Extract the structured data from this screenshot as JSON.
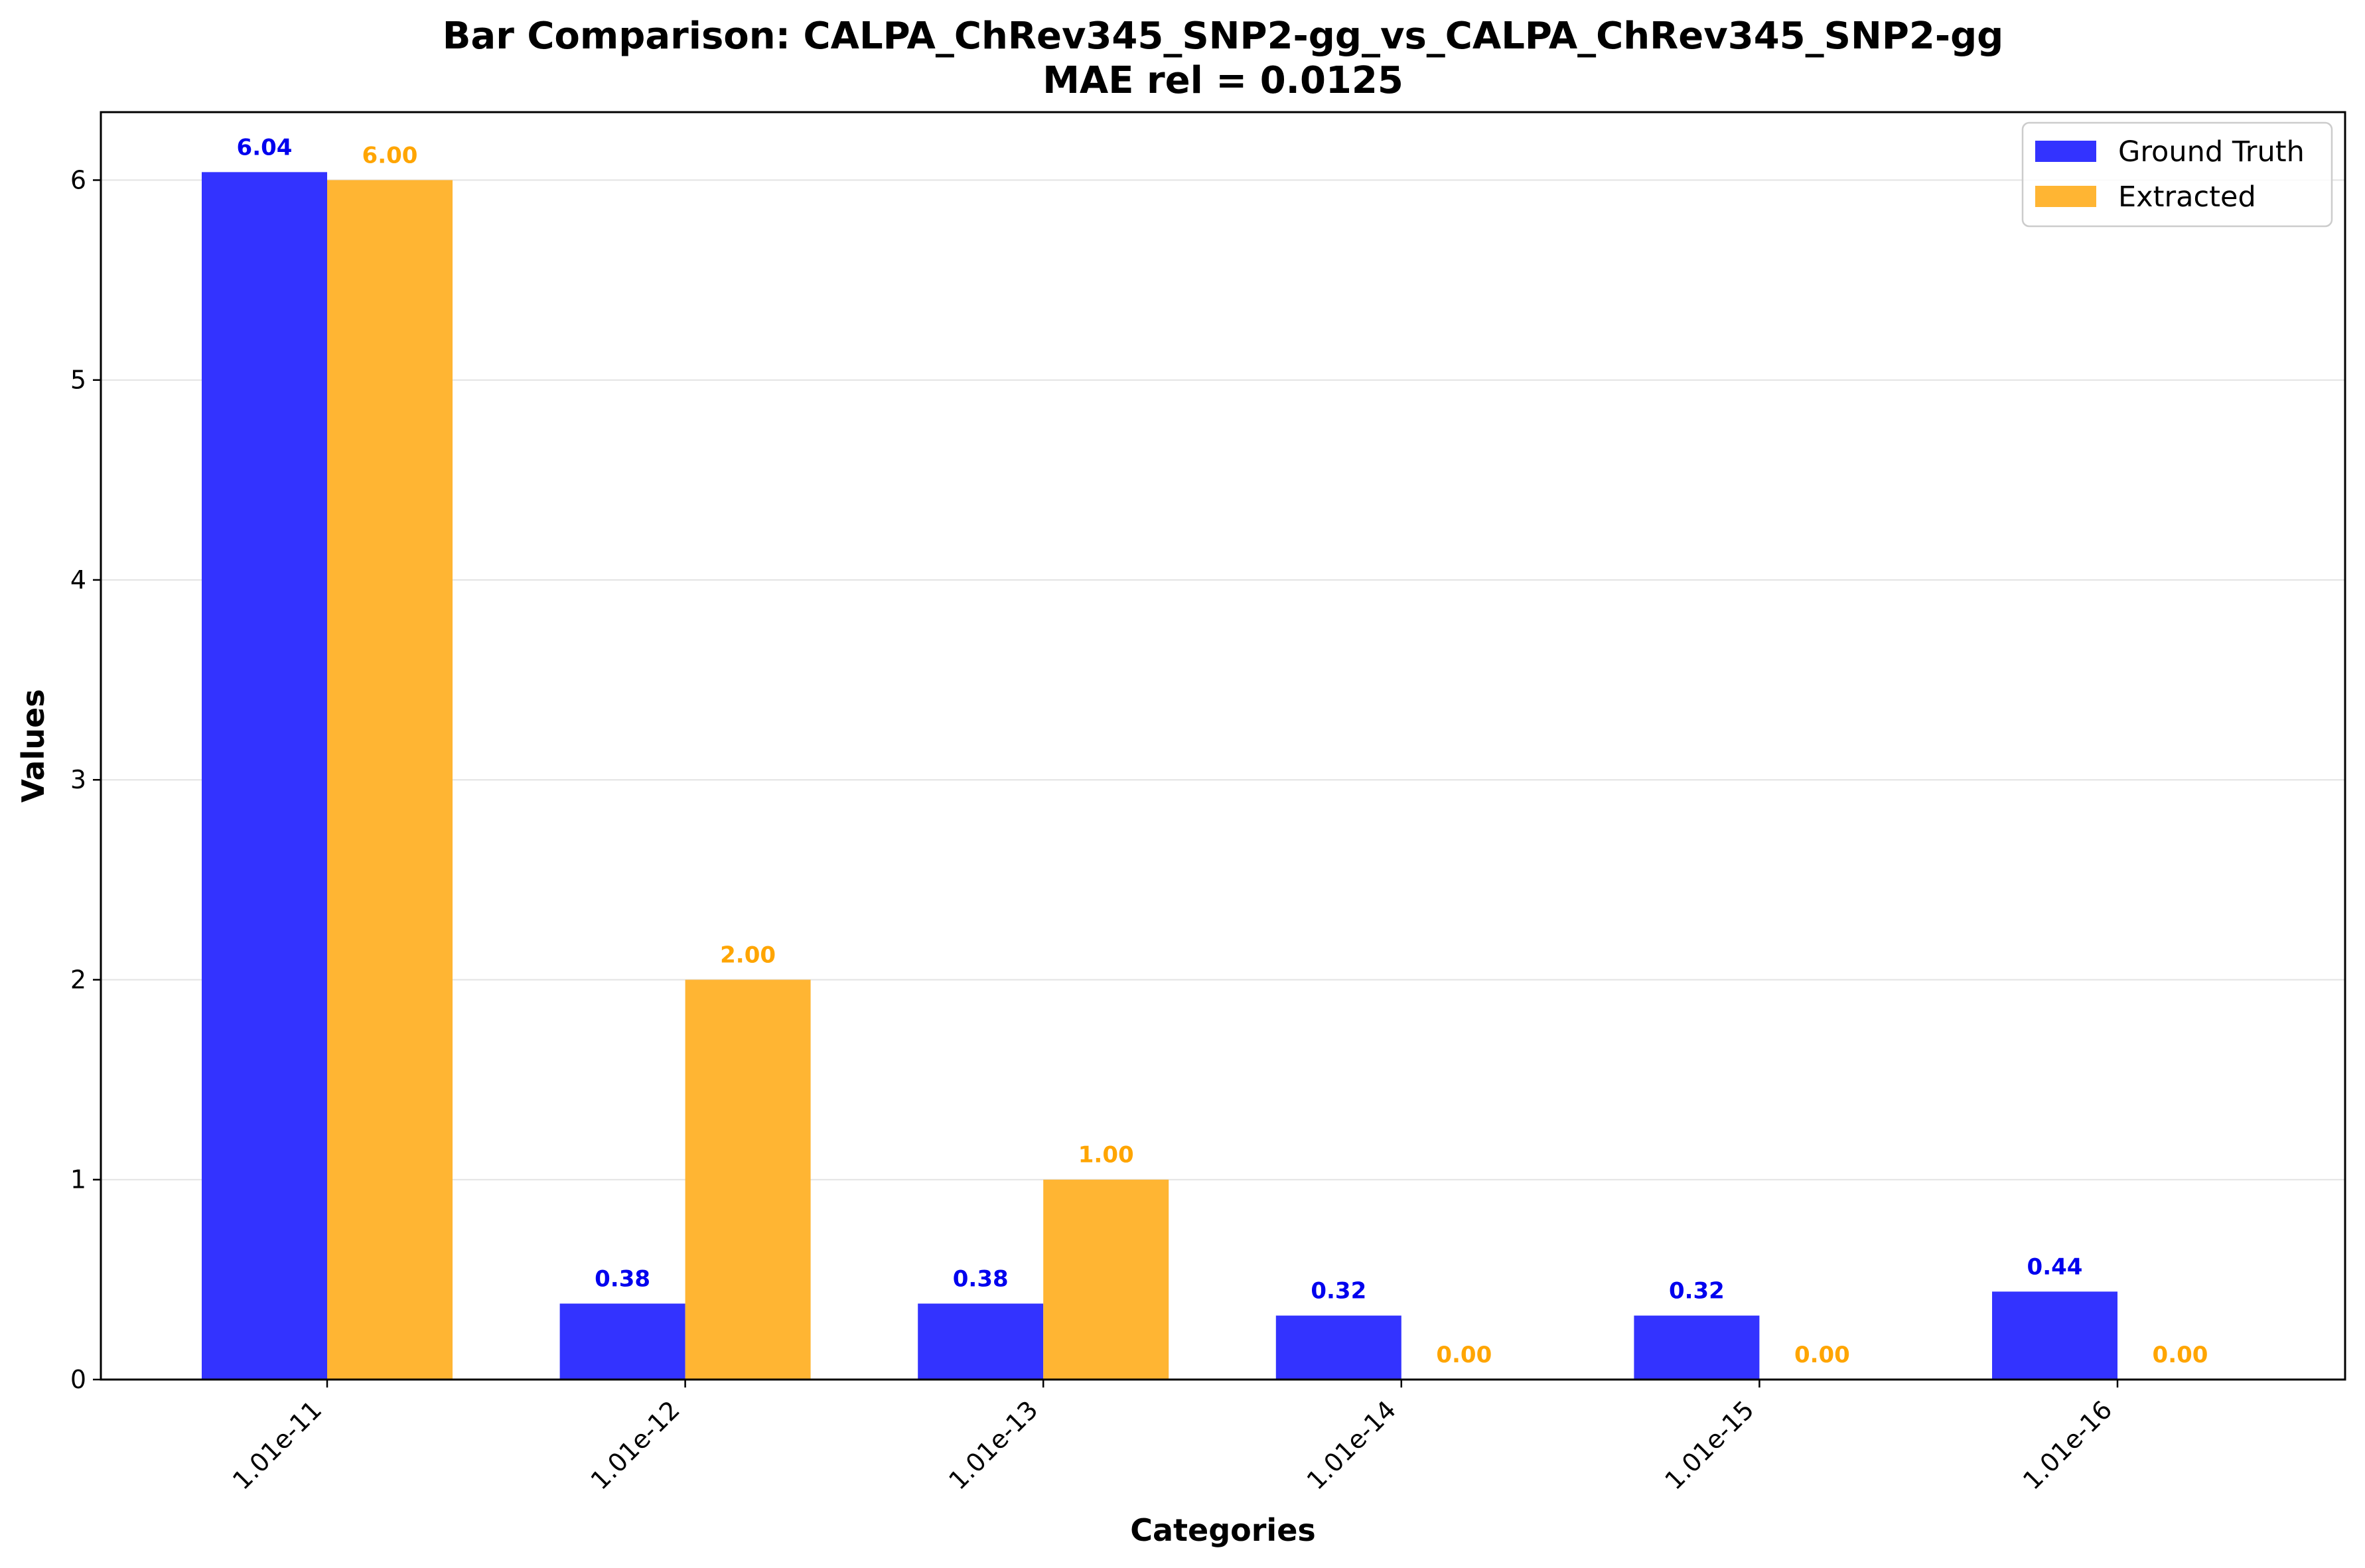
{
  "chart_data": {
    "type": "bar",
    "title": "Bar Comparison: CALPA_ChRev345_SNP2-gg_vs_CALPA_ChRev345_SNP2-gg",
    "subtitle": "MAE rel = 0.0125",
    "xlabel": "Categories",
    "ylabel": "Values",
    "categories": [
      "1.01e-11",
      "1.01e-12",
      "1.01e-13",
      "1.01e-14",
      "1.01e-15",
      "1.01e-16"
    ],
    "series": [
      {
        "name": "Ground Truth",
        "color": "#3333ff",
        "label_color": "#0000ee",
        "values": [
          6.04,
          0.38,
          0.38,
          0.32,
          0.32,
          0.44
        ],
        "labels": [
          "6.04",
          "0.38",
          "0.38",
          "0.32",
          "0.32",
          "0.44"
        ]
      },
      {
        "name": "Extracted",
        "color": "#ffb533",
        "label_color": "#ffa500",
        "values": [
          6.0,
          2.0,
          1.0,
          0.0,
          0.0,
          0.0
        ],
        "labels": [
          "6.00",
          "2.00",
          "1.00",
          "0.00",
          "0.00",
          "0.00"
        ]
      }
    ],
    "ylim": [
      0,
      6.34
    ],
    "yticks": [
      "0",
      "1",
      "2",
      "3",
      "4",
      "5",
      "6"
    ],
    "grid": "horizontal",
    "legend_position": "top-right"
  }
}
